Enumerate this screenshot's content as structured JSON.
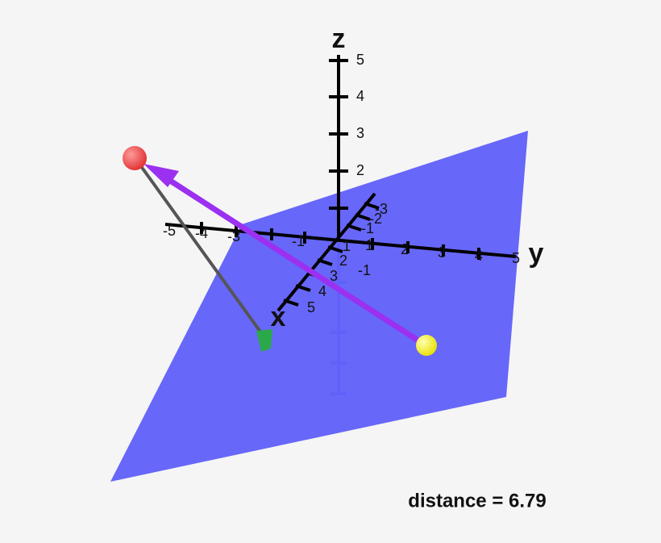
{
  "axes": {
    "x": {
      "label": "x",
      "ticks": [
        "-3",
        "-2",
        "-1",
        "1",
        "2",
        "3",
        "4",
        "5"
      ]
    },
    "y": {
      "label": "y",
      "ticks": [
        "-5",
        "-4",
        "-3",
        "-1",
        "1",
        "2",
        "3",
        "4",
        "5"
      ]
    },
    "z": {
      "label": "z",
      "ticks": [
        "-1",
        "2",
        "3",
        "4",
        "5"
      ]
    }
  },
  "annotation": "distance = 6.79"
}
